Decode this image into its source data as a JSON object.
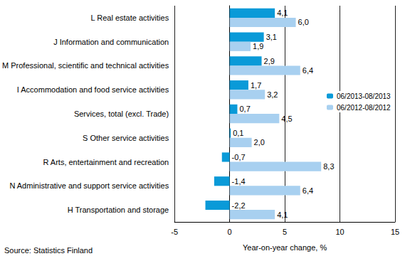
{
  "chart_data": {
    "type": "bar",
    "orientation": "horizontal",
    "categories": [
      "L Real estate activities",
      "J Information and communication",
      "M Professional, scientific and technical activities",
      "I Accommodation and food service activities",
      "Services, total (excl. Trade)",
      "S Other service activities",
      "R Arts, entertainment and recreation",
      "N Administrative and support service activities",
      "H Transportation and storage"
    ],
    "series": [
      {
        "name": "06/2013-08/2013",
        "color": "#0a9ad8",
        "values": [
          4.1,
          3.1,
          2.9,
          1.7,
          0.7,
          0.1,
          -0.7,
          -1.4,
          -2.2
        ],
        "value_labels": [
          "4,1",
          "3,1",
          "2,9",
          "1,7",
          "0,7",
          "0,1",
          "-0,7",
          "-1,4",
          "-2,2"
        ]
      },
      {
        "name": "06/2012-08/2012",
        "color": "#a8d0f0",
        "values": [
          6.0,
          1.9,
          6.4,
          3.2,
          4.5,
          2.0,
          8.3,
          6.4,
          4.1
        ],
        "value_labels": [
          "6,0",
          "1,9",
          "6,4",
          "3,2",
          "4,5",
          "2,0",
          "8,3",
          "6,4",
          "4,1"
        ]
      }
    ],
    "x_label": "Year-on-year change, %",
    "annotations": [
      "Source: Statistics Finland"
    ],
    "xlim": [
      -5,
      15
    ],
    "xticks": [
      -5,
      0,
      5,
      10,
      15
    ],
    "grid": true,
    "legend": "right",
    "data_labels": true
  }
}
